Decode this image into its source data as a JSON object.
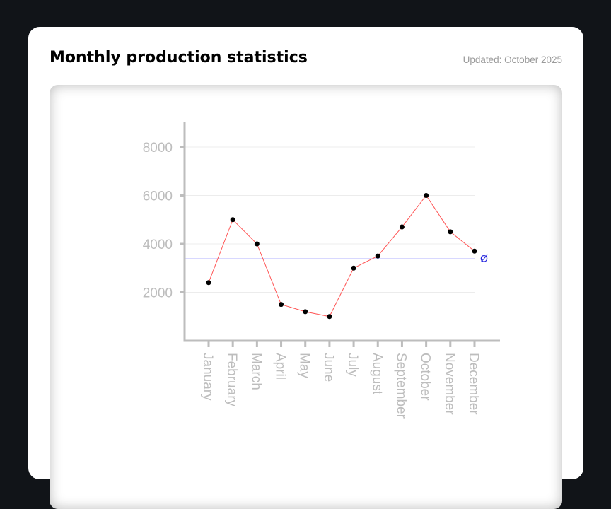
{
  "header": {
    "title": "Monthly production statistics",
    "updated": "Updated: October 2025"
  },
  "colors": {
    "series_line": "#ff5555",
    "points": "#000000",
    "mean_line": "#6666ff",
    "axis": "#bdbdbd",
    "grid": "#ececec"
  },
  "chart_data": {
    "type": "line",
    "categories": [
      "January",
      "February",
      "March",
      "April",
      "May",
      "June",
      "July",
      "August",
      "September",
      "October",
      "November",
      "December"
    ],
    "series": [
      {
        "values": [
          2400,
          5000,
          4000,
          1500,
          1200,
          1000,
          3000,
          3500,
          4700,
          6000,
          4500,
          3700
        ]
      }
    ],
    "yticks": [
      2000,
      4000,
      6000,
      8000
    ],
    "ylim": [
      0,
      9000
    ],
    "grid": true,
    "mean": 3375,
    "mean_label": "Ø",
    "title": "",
    "xlabel": "",
    "ylabel": ""
  }
}
